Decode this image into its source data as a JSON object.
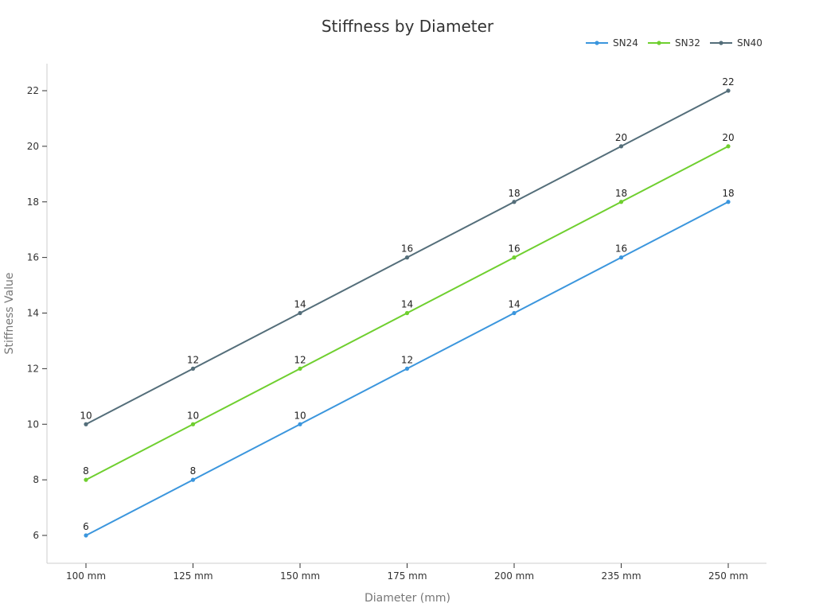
{
  "chart_data": {
    "type": "line",
    "title": "Stiffness by Diameter",
    "xlabel": "Diameter (mm)",
    "ylabel": "Stiffness Value",
    "categories": [
      "100 mm",
      "125 mm",
      "150 mm",
      "175 mm",
      "200 mm",
      "235 mm",
      "250 mm"
    ],
    "ylim": [
      5,
      23
    ],
    "yticks": [
      6,
      8,
      10,
      12,
      14,
      16,
      18,
      20,
      22
    ],
    "grid": false,
    "legend_position": "top-right",
    "series": [
      {
        "name": "SN24",
        "color": "#3b96dd",
        "values": [
          6,
          8,
          10,
          12,
          14,
          16,
          18
        ]
      },
      {
        "name": "SN32",
        "color": "#6fcf2f",
        "values": [
          8,
          10,
          12,
          14,
          16,
          18,
          20
        ]
      },
      {
        "name": "SN40",
        "color": "#546e7a",
        "values": [
          10,
          12,
          14,
          16,
          18,
          20,
          22
        ]
      }
    ]
  }
}
